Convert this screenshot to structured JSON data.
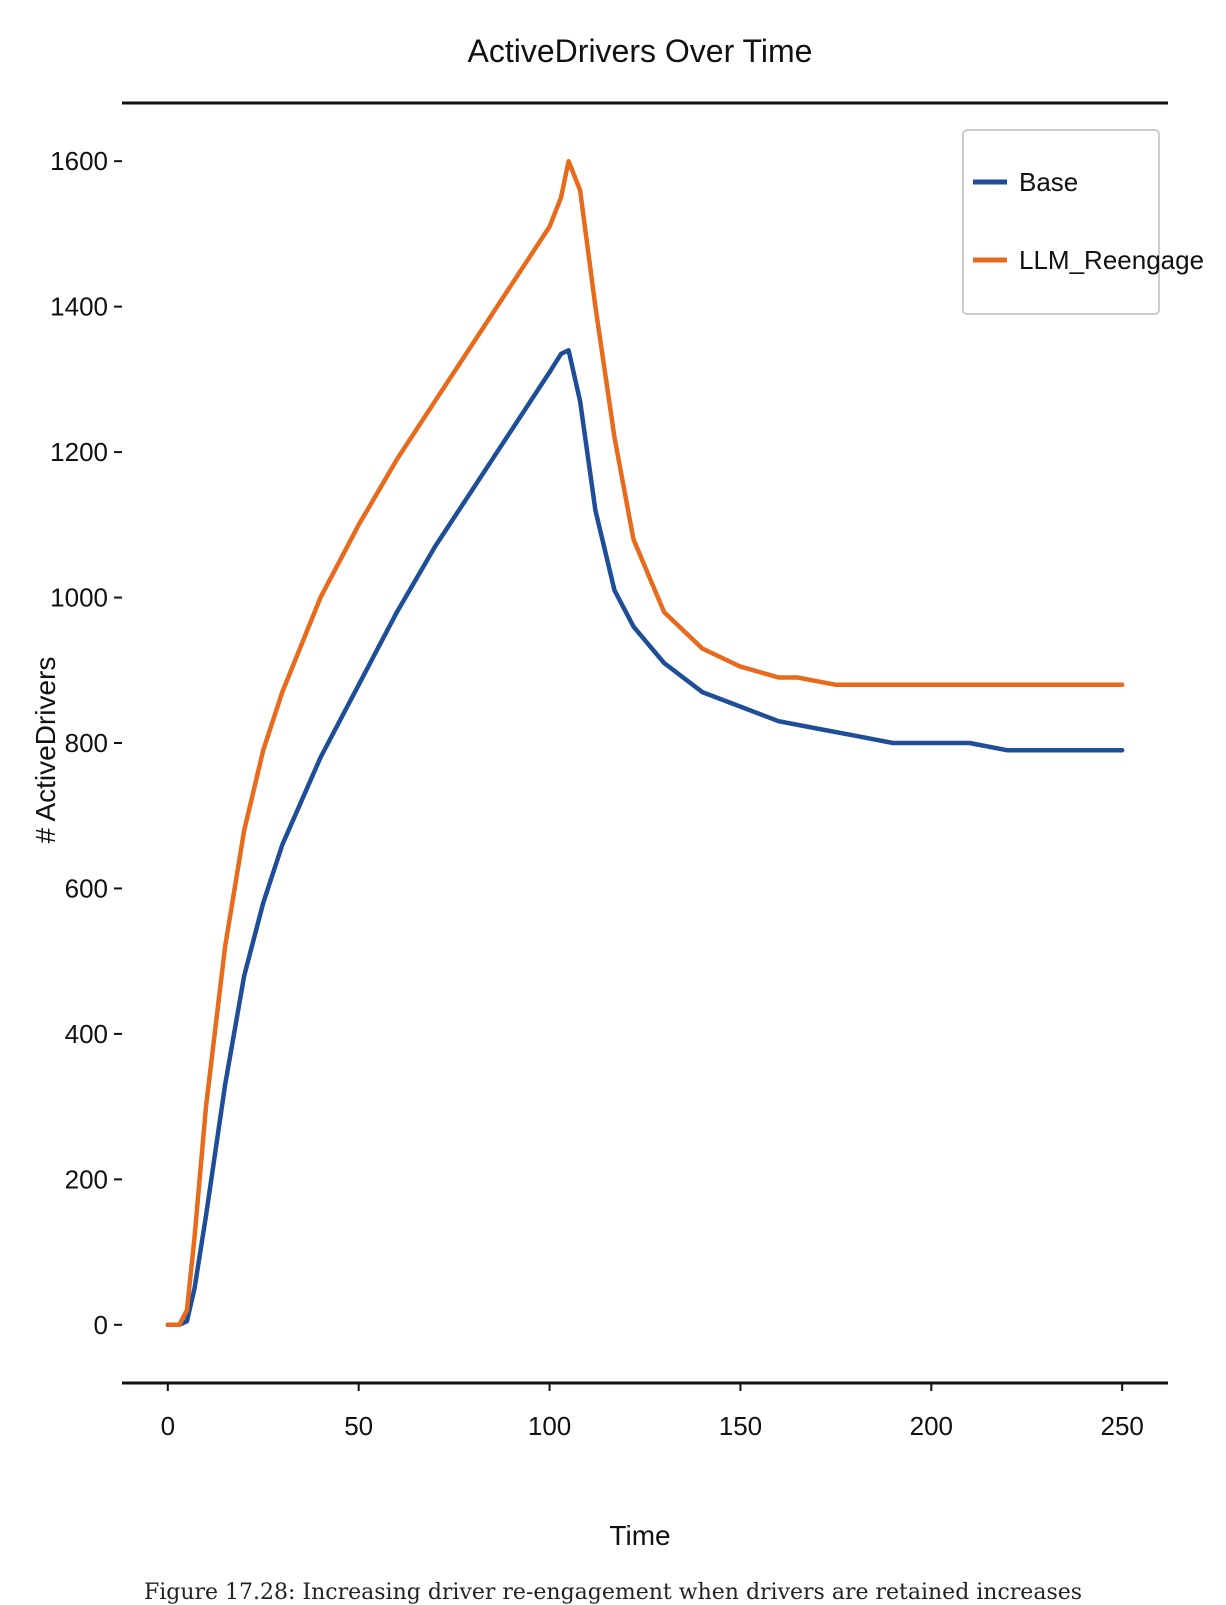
{
  "chart_data": {
    "type": "line",
    "title": "ActiveDrivers Over Time",
    "xlabel": "Time",
    "ylabel": "# ActiveDrivers",
    "xlim": [
      -12,
      262
    ],
    "ylim": [
      -80,
      1680
    ],
    "xticks": [
      0,
      50,
      100,
      150,
      200,
      250
    ],
    "yticks": [
      0,
      200,
      400,
      600,
      800,
      1000,
      1200,
      1400,
      1600
    ],
    "grid": false,
    "legend_position": "top-right",
    "series": [
      {
        "name": "Base",
        "color": "#1f4e99",
        "x": [
          0,
          3,
          5,
          7,
          10,
          15,
          20,
          25,
          30,
          40,
          50,
          60,
          70,
          80,
          90,
          100,
          103,
          105,
          108,
          112,
          117,
          122,
          130,
          140,
          150,
          160,
          170,
          180,
          190,
          200,
          210,
          220,
          230,
          240,
          250
        ],
        "y": [
          0,
          0,
          5,
          50,
          150,
          330,
          480,
          580,
          660,
          780,
          880,
          980,
          1070,
          1150,
          1230,
          1310,
          1335,
          1340,
          1270,
          1120,
          1010,
          960,
          910,
          870,
          850,
          830,
          820,
          810,
          800,
          800,
          800,
          790,
          790,
          790,
          790
        ]
      },
      {
        "name": "LLM_Reengage",
        "color": "#e86a1c",
        "x": [
          0,
          3,
          5,
          7,
          10,
          15,
          20,
          25,
          30,
          40,
          50,
          60,
          70,
          80,
          90,
          100,
          103,
          105,
          108,
          112,
          117,
          122,
          130,
          140,
          150,
          160,
          165,
          170,
          175,
          180,
          200,
          220,
          250
        ],
        "y": [
          0,
          0,
          20,
          120,
          300,
          520,
          680,
          790,
          870,
          1000,
          1100,
          1190,
          1270,
          1350,
          1430,
          1510,
          1550,
          1600,
          1560,
          1400,
          1220,
          1080,
          980,
          930,
          905,
          890,
          890,
          885,
          880,
          880,
          880,
          880,
          880
        ]
      }
    ]
  },
  "caption": "Figure 17.28: Increasing driver re-engagement when drivers are retained increases"
}
